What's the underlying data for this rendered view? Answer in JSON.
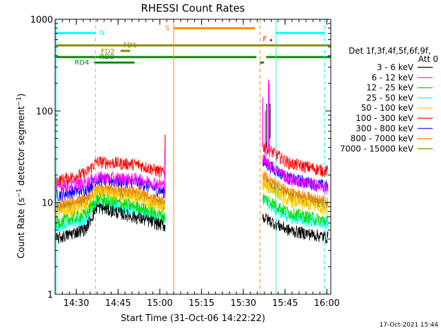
{
  "chart_data": {
    "type": "line",
    "title": "RHESSI Count Rates",
    "xlabel": "Start Time (31-Oct-06 14:22:22)",
    "ylabel_prefix": "Count Rate (s",
    "ylabel_sup1": "−1",
    "ylabel_mid": " detector segment",
    "ylabel_sup2": "−1",
    "ylabel_suffix": ")",
    "yscale": "log",
    "ylim": [
      1,
      1000
    ],
    "xlim_minutes": [
      0,
      99
    ],
    "x_ticks": [
      {
        "min": 7.6,
        "label": "14:30"
      },
      {
        "min": 22.6,
        "label": "14:45"
      },
      {
        "min": 37.6,
        "label": "15:00"
      },
      {
        "min": 52.6,
        "label": "15:15"
      },
      {
        "min": 67.6,
        "label": "15:30"
      },
      {
        "min": 82.6,
        "label": "15:45"
      },
      {
        "min": 97.6,
        "label": "16:00"
      }
    ],
    "y_ticks": [
      {
        "value": 1,
        "label": "1"
      },
      {
        "value": 10,
        "label": "10"
      },
      {
        "value": 100,
        "label": "100"
      },
      {
        "value": 1000,
        "label": "1000"
      }
    ],
    "legend_header": [
      "Det 1f,3f,4f,5f,6f,9f,",
      "Att 0"
    ],
    "series": [
      {
        "name": "3 - 6 keV",
        "color": "#000000",
        "pre": [
          4.0,
          5.2,
          9.0,
          6.8,
          5.6
        ],
        "post": [
          7.0,
          5.0,
          4.2
        ]
      },
      {
        "name": "6 - 12 keV",
        "color": "#ff00ff",
        "pre": [
          14.5,
          16.5,
          19.0,
          18.0,
          15.5
        ],
        "post": [
          30.0,
          18.0,
          14.5
        ]
      },
      {
        "name": "12 - 25 keV",
        "color": "#00dd00",
        "pre": [
          6.0,
          7.5,
          11.0,
          9.0,
          7.0
        ],
        "post": [
          11.5,
          7.8,
          6.3
        ]
      },
      {
        "name": "25 - 50 keV",
        "color": "#00ffff",
        "pre": [
          5.5,
          6.5,
          10.0,
          8.0,
          6.5
        ],
        "post": [
          10.5,
          7.0,
          5.8
        ]
      },
      {
        "name": "50 - 100 keV",
        "color": "#ffcc00",
        "pre": [
          7.5,
          9.0,
          13.0,
          11.0,
          8.5
        ],
        "post": [
          16.0,
          10.5,
          8.5
        ]
      },
      {
        "name": "100 - 300 keV",
        "color": "#ff0000",
        "pre": [
          17.0,
          21.0,
          28.0,
          26.0,
          21.0
        ],
        "post": [
          42.0,
          27.0,
          22.0
        ]
      },
      {
        "name": "300 - 800 keV",
        "color": "#0000ff",
        "pre": [
          12.0,
          14.0,
          18.0,
          16.5,
          13.0
        ],
        "post": [
          28.0,
          18.5,
          15.0
        ]
      },
      {
        "name": "800 - 7000 keV",
        "color": "#ff8800",
        "pre": [
          9.0,
          11.0,
          15.0,
          13.0,
          10.0
        ],
        "post": [
          20.0,
          13.0,
          10.0
        ]
      },
      {
        "name": "7000 - 15000 keV",
        "color": "#888800",
        "pre": [
          8.5,
          10.5,
          14.0,
          12.0,
          9.5
        ],
        "post": [
          18.0,
          12.0,
          9.5
        ]
      }
    ],
    "pre_segment_minutes": [
      0,
      11,
      15,
      30,
      39.5
    ],
    "post_segment_minutes": [
      74.5,
      84,
      98
    ]
  },
  "flags": [
    {
      "label": "N",
      "color": "#00ffff"
    },
    {
      "label": "S",
      "color": "#ff8800"
    },
    {
      "label": "F",
      "color": "#ff0000"
    },
    {
      "label": "FD1",
      "color": "#888800"
    },
    {
      "label": "FD2",
      "color": "#888800"
    },
    {
      "label": "RD0",
      "color": "#008800"
    },
    {
      "label": "RD4",
      "color": "#008800"
    }
  ],
  "timestamp": "17-Oct-2021 15:44"
}
